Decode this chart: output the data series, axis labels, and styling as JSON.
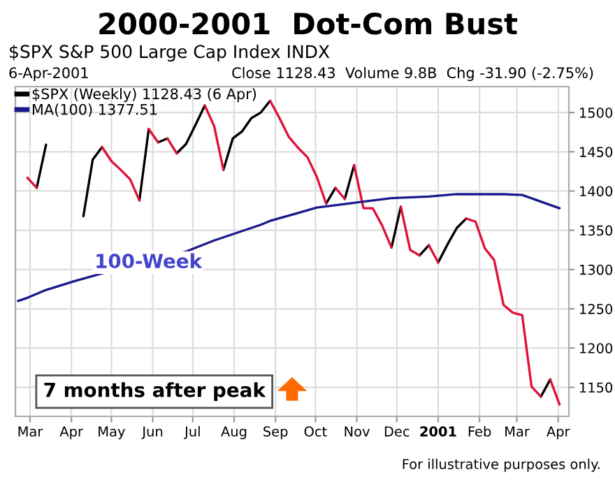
{
  "chart_data": {
    "type": "line",
    "title": "2000-2001  Dot-Com Bust",
    "annotations": [
      "$SPX S&P 500 Large Cap Index INDX",
      "6-Apr-2001",
      "Close 1128.43  Volume 9.8B  Chg -31.90 (-2.75%)",
      "100-Week",
      "7 months after peak",
      "For illustrative purposes only."
    ],
    "x": [
      "2000-02-28",
      "2000-03-06",
      "2000-03-13",
      "2000-03-20",
      "2000-03-27",
      "2000-04-03",
      "2000-04-10",
      "2000-04-17",
      "2000-04-24",
      "2000-05-01",
      "2000-05-08",
      "2000-05-15",
      "2000-05-22",
      "2000-05-29",
      "2000-06-05",
      "2000-06-12",
      "2000-06-19",
      "2000-06-26",
      "2000-07-03",
      "2000-07-10",
      "2000-07-17",
      "2000-07-24",
      "2000-07-31",
      "2000-08-07",
      "2000-08-14",
      "2000-08-21",
      "2000-08-28",
      "2000-09-04",
      "2000-09-11",
      "2000-09-18",
      "2000-09-25",
      "2000-10-02",
      "2000-10-09",
      "2000-10-16",
      "2000-10-23",
      "2000-10-30",
      "2000-11-06",
      "2000-11-13",
      "2000-11-20",
      "2000-11-27",
      "2000-12-04",
      "2000-12-11",
      "2000-12-18",
      "2000-12-25",
      "2001-01-01",
      "2001-01-08",
      "2001-01-15",
      "2001-01-22",
      "2001-01-29",
      "2001-02-05",
      "2001-02-12",
      "2001-02-19",
      "2001-02-26",
      "2001-03-05",
      "2001-03-12",
      "2001-03-19",
      "2001-03-26",
      "2001-04-02"
    ],
    "series": [
      {
        "name": "$SPX (Weekly) 1128.43 (6 Apr)",
        "color": "#000000",
        "values": [
          null,
          1404,
          1459,
          null,
          null,
          null,
          null,
          null,
          null,
          null,
          null,
          null,
          1388,
          1479,
          null,
          null,
          1448,
          1460,
          1484,
          1509,
          null,
          null,
          null,
          null,
          null,
          null,
          null,
          null,
          null,
          null,
          null,
          null,
          1384,
          1404,
          null,
          null,
          null,
          null,
          null,
          1328,
          1380,
          null,
          null,
          null,
          1309,
          1332,
          1353,
          1365,
          null,
          null,
          null,
          null,
          null,
          null,
          null,
          null,
          null,
          null
        ]
      },
      {
        "color": "#000000",
        "values": [
          null,
          null,
          null,
          null,
          null,
          null,
          1368,
          1440,
          1456,
          null,
          null,
          null,
          null,
          null,
          1462,
          1467,
          null,
          null,
          null,
          null,
          null,
          1427,
          1467,
          1476,
          1493,
          1500,
          1515,
          null,
          null,
          null,
          null,
          null,
          null,
          null,
          1390,
          1433,
          null,
          null,
          null,
          null,
          null,
          null,
          1318,
          1331,
          null,
          null,
          null,
          null,
          null,
          null,
          null,
          null,
          null,
          null,
          null,
          1138,
          1160,
          null
        ]
      },
      {
        "color": "#e0103a",
        "values": [
          1417,
          1404,
          null,
          null,
          null,
          null,
          null,
          null,
          null,
          null,
          null,
          null,
          null,
          1479,
          1462,
          null,
          null,
          null,
          null,
          1509,
          1483,
          1427,
          null,
          null,
          null,
          null,
          null,
          null,
          null,
          null,
          null,
          null,
          null,
          1404,
          1390,
          null,
          null,
          null,
          null,
          null,
          1380,
          1325,
          1318,
          null,
          null,
          null,
          null,
          1365,
          1361,
          1327,
          1312,
          1255,
          1245,
          1242,
          1151,
          1138,
          null,
          null
        ]
      },
      {
        "color": "#e0103a",
        "values": [
          null,
          null,
          null,
          null,
          null,
          null,
          null,
          null,
          1456,
          1438,
          1427,
          1415,
          1388,
          null,
          null,
          1467,
          1448,
          null,
          null,
          null,
          null,
          null,
          null,
          null,
          null,
          null,
          1515,
          1493,
          1469,
          1455,
          1443,
          1418,
          1384,
          null,
          null,
          1433,
          1378,
          1378,
          1356,
          1328,
          null,
          null,
          null,
          1331,
          1309,
          null,
          null,
          null,
          null,
          null,
          null,
          null,
          null,
          null,
          null,
          null,
          1160,
          1128
        ]
      },
      {
        "name": "MA(100) 1377.51",
        "color": "#1a1a8c",
        "x": [
          "2000-02-21",
          "2000-02-28",
          "2000-03-13",
          "2000-04-03",
          "2000-04-24",
          "2000-06-26",
          "2000-07-17",
          "2000-08-21",
          "2000-08-28",
          "2000-09-18",
          "2000-10-02",
          "2000-10-30",
          "2000-11-27",
          "2000-12-25",
          "2001-01-15",
          "2001-02-19",
          "2001-03-05",
          "2001-04-02"
        ],
        "values": [
          1260,
          1264,
          1274,
          1285,
          1295,
          1323,
          1337,
          1357,
          1362,
          1372,
          1379,
          1385,
          1391,
          1393,
          1396,
          1396,
          1395,
          1378
        ]
      }
    ],
    "xlim": [
      "2000-02-19",
      "2001-04-09"
    ],
    "xticks": [
      {
        "value": "2000-03-01",
        "label": "Mar"
      },
      {
        "value": "2000-04-01",
        "label": "Apr"
      },
      {
        "value": "2000-05-01",
        "label": "May"
      },
      {
        "value": "2000-06-01",
        "label": "Jun"
      },
      {
        "value": "2000-07-01",
        "label": "Jul"
      },
      {
        "value": "2000-08-01",
        "label": "Aug"
      },
      {
        "value": "2000-09-01",
        "label": "Sep"
      },
      {
        "value": "2000-10-01",
        "label": "Oct"
      },
      {
        "value": "2000-11-01",
        "label": "Nov"
      },
      {
        "value": "2000-12-01",
        "label": "Dec"
      },
      {
        "value": "2001-01-01",
        "label": "2001"
      },
      {
        "value": "2001-02-01",
        "label": "Feb"
      },
      {
        "value": "2001-03-01",
        "label": "Mar"
      },
      {
        "value": "2001-04-01",
        "label": "Apr"
      }
    ],
    "ylim": [
      1113,
      1533
    ],
    "yticks": [
      1150,
      1200,
      1250,
      1300,
      1350,
      1400,
      1450,
      1500
    ],
    "grid": true,
    "legend": "top left",
    "marker": "none",
    "line_style": "solid"
  }
}
